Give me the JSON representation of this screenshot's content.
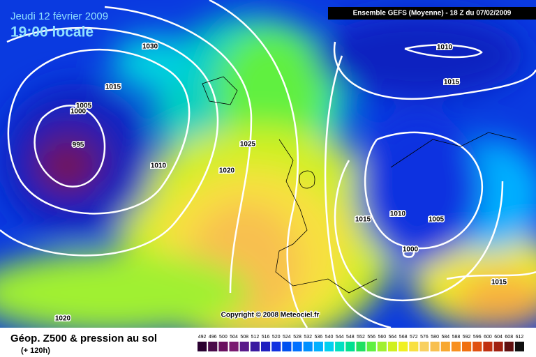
{
  "header": {
    "date": "Jeudi 12 février 2009",
    "time": "19:00 locale",
    "model": "Ensemble GEFS (Moyenne)  - 18 Z du 07/02/2009"
  },
  "isobar_labels": [
    "1030",
    "1015",
    "1005",
    "1000",
    "995",
    "1010",
    "1025",
    "1020",
    "1020",
    "1010",
    "1015",
    "1010",
    "1015",
    "1005",
    "1000",
    "1015"
  ],
  "copyright": "Copyright © 2008 Meteociel.fr",
  "footer": {
    "title": "Géop. Z500 & pression au sol",
    "lead": "(+ 120h)"
  },
  "legend": {
    "labels": [
      492,
      496,
      500,
      504,
      508,
      512,
      516,
      520,
      524,
      528,
      532,
      536,
      540,
      544,
      548,
      552,
      556,
      560,
      564,
      568,
      572,
      576,
      580,
      584,
      588,
      592,
      596,
      600,
      604,
      608,
      612
    ],
    "colors": [
      "#2a0030",
      "#4a0a4a",
      "#6a1060",
      "#7a1a70",
      "#5a1a8a",
      "#3a1aa0",
      "#2020c0",
      "#1030e0",
      "#0050f0",
      "#0070ff",
      "#0090ff",
      "#00b0ff",
      "#00d0f0",
      "#00e0c0",
      "#00e090",
      "#20e060",
      "#60f040",
      "#a0f030",
      "#d0f020",
      "#f0f020",
      "#f8e040",
      "#f8d060",
      "#f8c050",
      "#f8a830",
      "#f89020",
      "#f07010",
      "#e05010",
      "#c03010",
      "#a02010",
      "#601010",
      "#101010"
    ]
  }
}
